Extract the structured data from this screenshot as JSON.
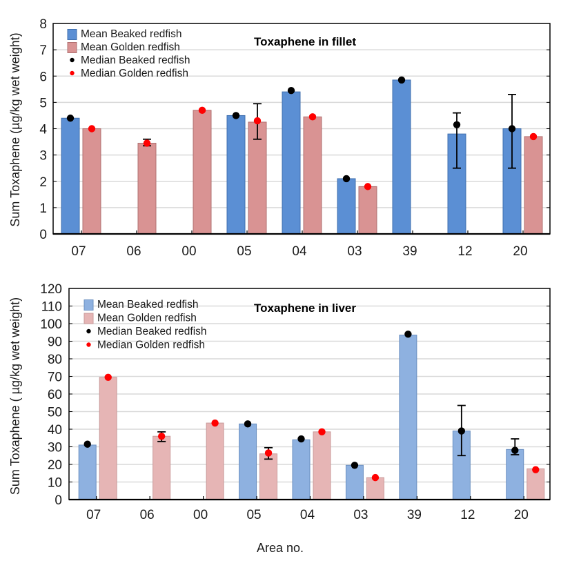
{
  "figure": {
    "xlabel": "Area no."
  },
  "chart_data": [
    {
      "type": "bar",
      "title": "Toxaphene in fillet",
      "xlabel": "",
      "ylabel": "Sum Toxaphene (µg/kg wet weight)",
      "ylim": [
        0,
        8
      ],
      "yticks": [
        0,
        1,
        2,
        3,
        4,
        5,
        6,
        7,
        8
      ],
      "grid": true,
      "legend_position": "top-left",
      "categories": [
        "07",
        "06",
        "00",
        "05",
        "04",
        "03",
        "39",
        "12",
        "20"
      ],
      "colors": {
        "beaked": "#5b8fd4",
        "beaked_edge": "#3f6fae",
        "golden": "#d99393",
        "golden_edge": "#b07070",
        "median_beaked": "#000000",
        "median_golden": "#ff0000"
      },
      "legend": [
        "Mean Beaked redfish",
        "Mean Golden redfish",
        "Median Beaked redfish",
        "Median Golden redfish"
      ],
      "series": [
        {
          "name": "Mean Beaked redfish",
          "values": [
            4.4,
            null,
            null,
            4.5,
            5.4,
            2.1,
            5.85,
            3.8,
            4.0
          ],
          "median": [
            4.4,
            null,
            null,
            4.5,
            5.45,
            2.1,
            5.85,
            4.15,
            4.0
          ],
          "error": [
            null,
            null,
            null,
            null,
            null,
            null,
            null,
            [
              2.5,
              4.6
            ],
            [
              2.5,
              5.3
            ]
          ]
        },
        {
          "name": "Mean Golden redfish",
          "values": [
            4.0,
            3.45,
            4.7,
            4.25,
            4.45,
            1.8,
            null,
            null,
            3.7
          ],
          "median": [
            4.0,
            3.45,
            4.7,
            4.3,
            4.45,
            1.8,
            null,
            null,
            3.7
          ],
          "error": [
            null,
            [
              3.35,
              3.6
            ],
            null,
            [
              3.6,
              4.95
            ],
            null,
            null,
            null,
            null,
            null
          ]
        }
      ]
    },
    {
      "type": "bar",
      "title": "Toxaphene in liver",
      "xlabel": "Area no.",
      "ylabel": "Sum Toxaphene ( µg/kg wet weight)",
      "ylim": [
        0,
        120
      ],
      "yticks": [
        0,
        10,
        20,
        30,
        40,
        50,
        60,
        70,
        80,
        90,
        100,
        110,
        120
      ],
      "grid": true,
      "legend_position": "top-left",
      "categories": [
        "07",
        "06",
        "00",
        "05",
        "04",
        "03",
        "39",
        "12",
        "20"
      ],
      "colors": {
        "beaked": "#8eb1e0",
        "beaked_edge": "#6a8fc0",
        "golden": "#e6b5b5",
        "golden_edge": "#c99a9a",
        "median_beaked": "#000000",
        "median_golden": "#ff0000"
      },
      "legend": [
        "Mean Beaked redfish",
        "Mean Golden redfish",
        "Median Beaked redfish",
        "Median Golden redfish"
      ],
      "series": [
        {
          "name": "Mean Beaked redfish",
          "values": [
            31,
            null,
            null,
            43,
            34,
            19.5,
            93.5,
            39,
            28.5
          ],
          "median": [
            31.5,
            null,
            null,
            43,
            34.5,
            19.5,
            94,
            39,
            28
          ],
          "error": [
            null,
            null,
            null,
            null,
            null,
            null,
            null,
            [
              25,
              53.5
            ],
            [
              25.5,
              34.5
            ]
          ]
        },
        {
          "name": "Mean Golden redfish",
          "values": [
            69.5,
            36,
            43.5,
            26,
            38.5,
            12.5,
            null,
            null,
            17.5
          ],
          "median": [
            69.5,
            36,
            43.5,
            26.5,
            38.5,
            12.5,
            null,
            null,
            17
          ],
          "error": [
            null,
            [
              33,
              38.5
            ],
            null,
            [
              23,
              29.5
            ],
            null,
            null,
            null,
            null,
            null
          ]
        }
      ]
    }
  ]
}
